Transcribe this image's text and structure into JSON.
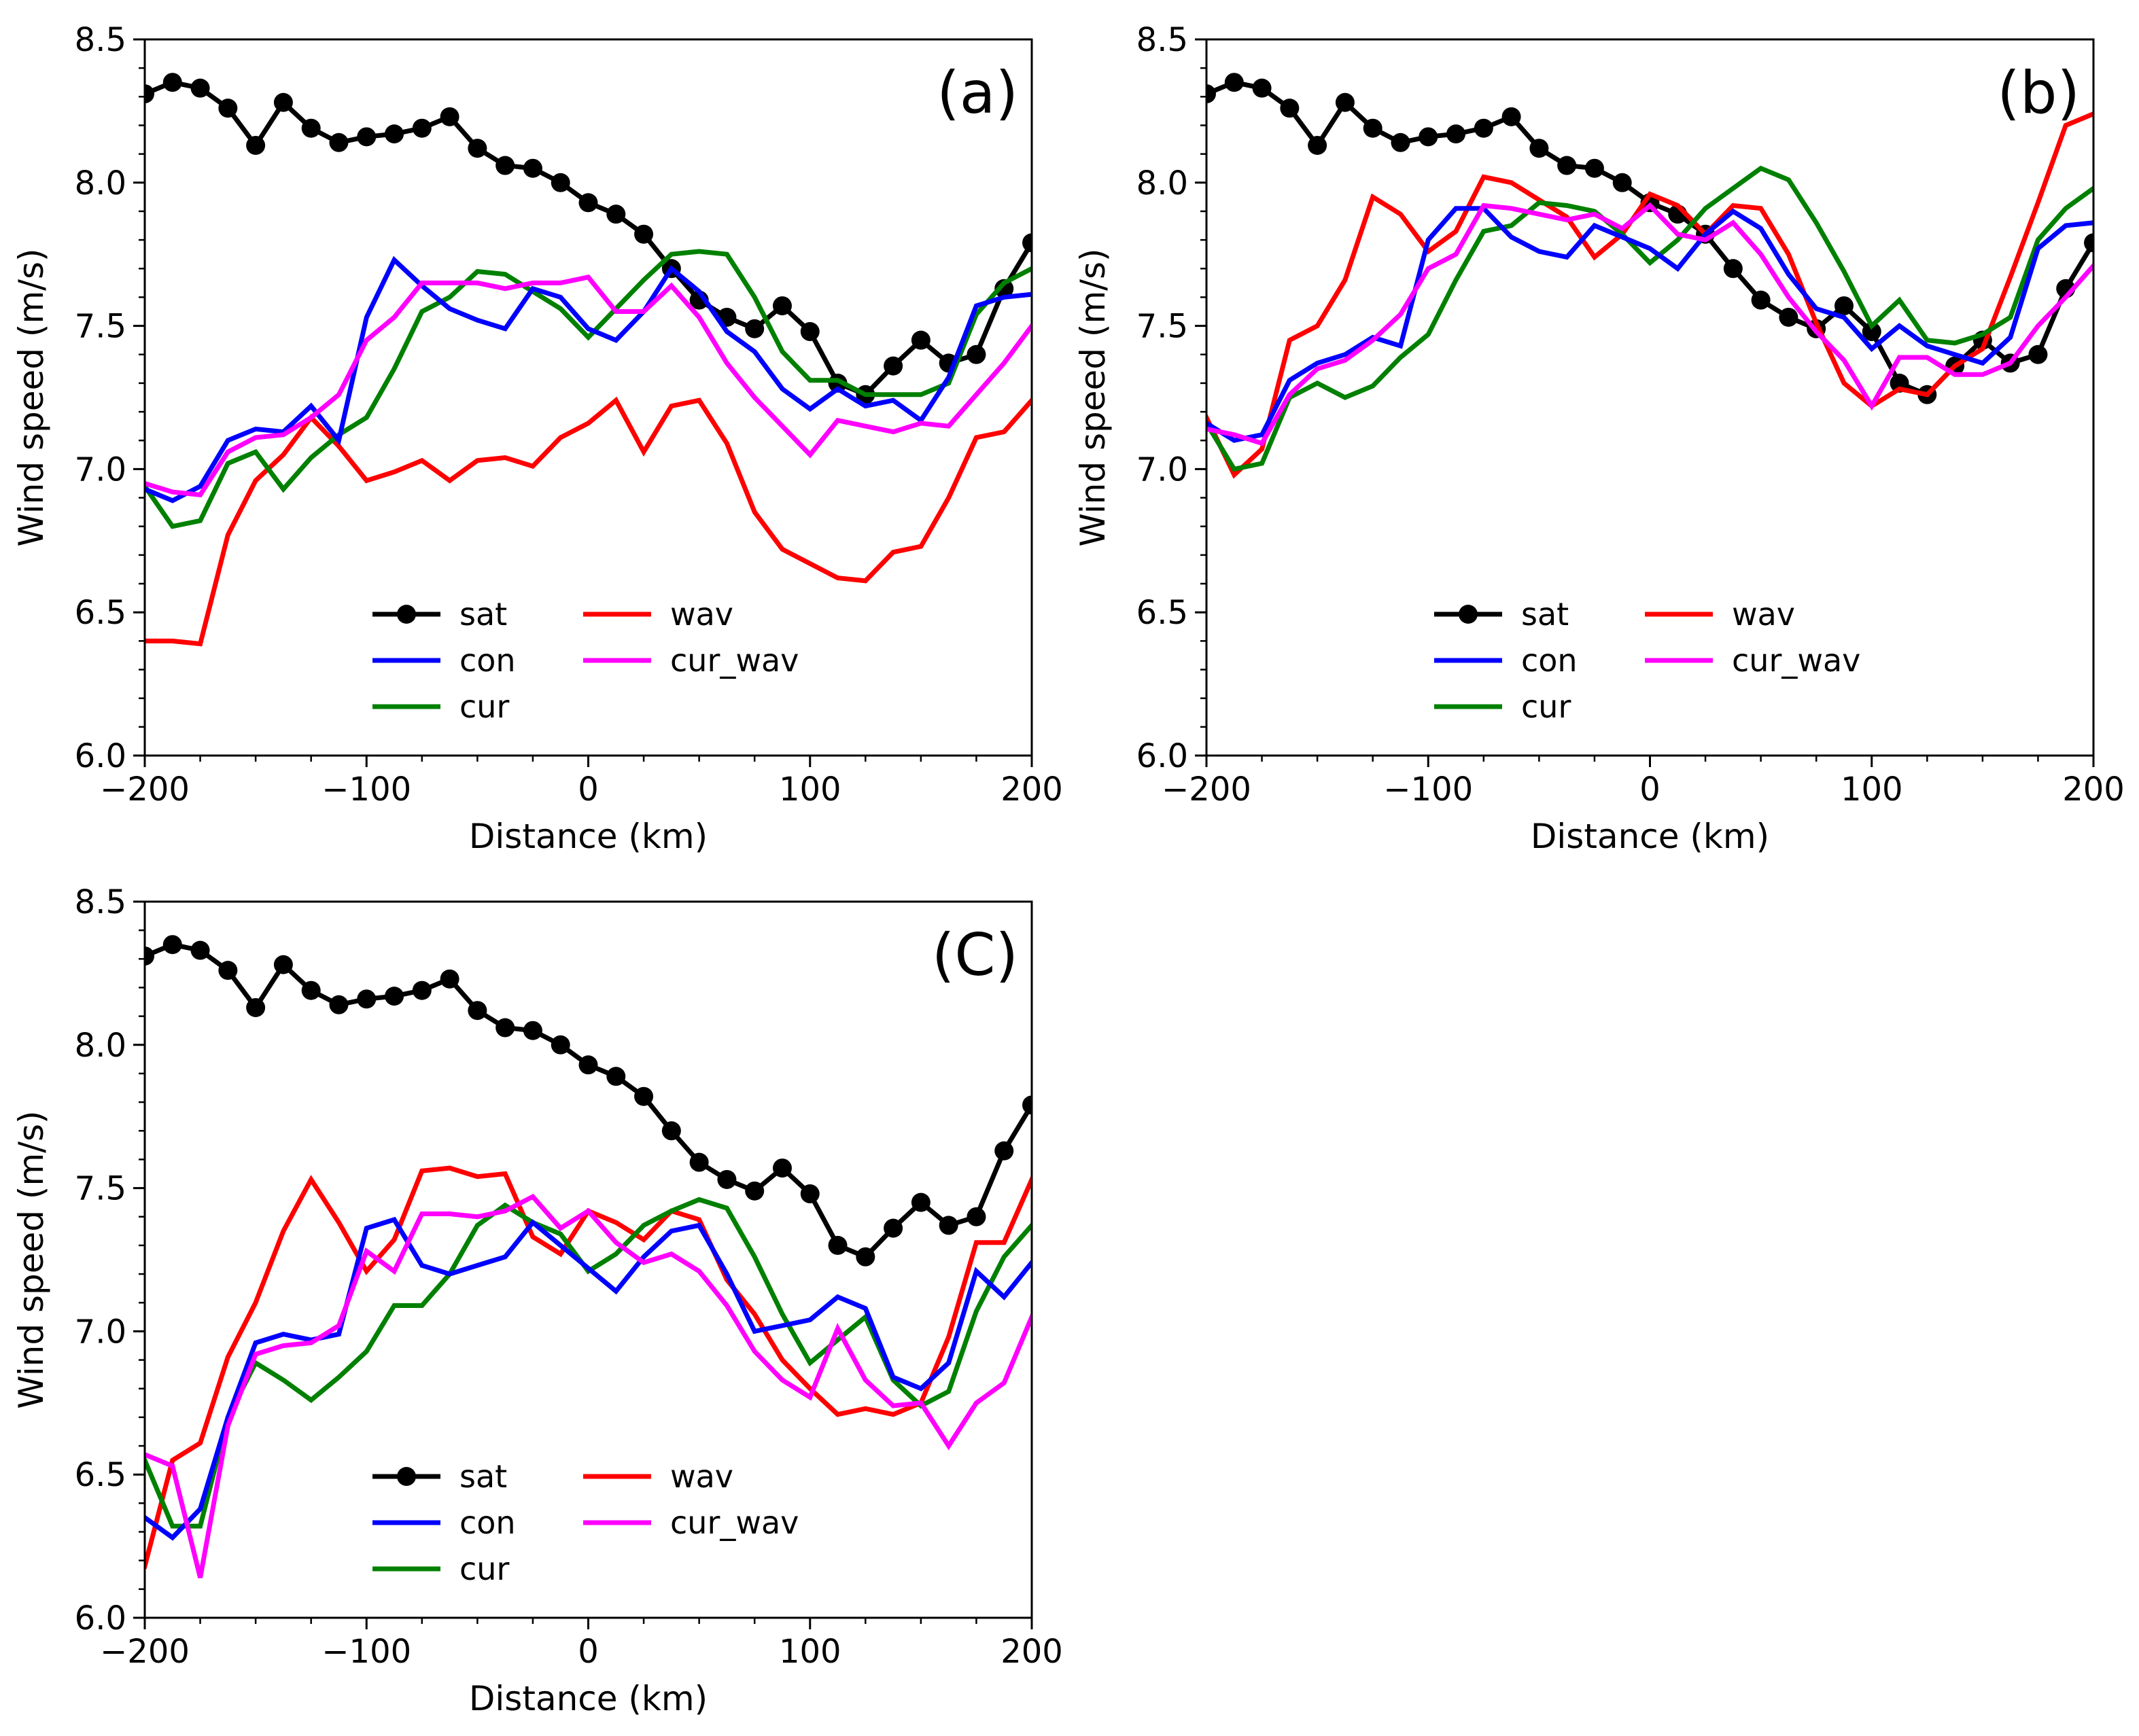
{
  "chart_data": [
    {
      "type": "line",
      "panel_label": "(a)",
      "xlabel": "Distance (km)",
      "ylabel": "Wind speed (m/s)",
      "xlim": [
        -200,
        200
      ],
      "ylim": [
        6.0,
        8.5
      ],
      "xticks": [
        -200,
        -100,
        0,
        100,
        200
      ],
      "yticks": [
        6.0,
        6.5,
        7.0,
        7.5,
        8.0,
        8.5
      ],
      "xtick_labels": [
        "−200",
        "−100",
        "0",
        "100",
        "200"
      ],
      "ytick_labels": [
        "6.0",
        "6.5",
        "7.0",
        "7.5",
        "8.0",
        "8.5"
      ],
      "legend_position": "lower-center",
      "x": [
        -200,
        -187.5,
        -175,
        -162.5,
        -150,
        -137.5,
        -125,
        -112.5,
        -100,
        -87.5,
        -75,
        -62.5,
        -50,
        -37.5,
        -25,
        -12.5,
        0,
        12.5,
        25,
        37.5,
        50,
        62.5,
        75,
        87.5,
        100,
        112.5,
        125,
        137.5,
        150,
        162.5,
        175,
        187.5,
        200
      ],
      "series": [
        {
          "name": "sat",
          "color": "#000000",
          "markers": true,
          "values": [
            8.31,
            8.35,
            8.33,
            8.26,
            8.13,
            8.28,
            8.19,
            8.14,
            8.16,
            8.17,
            8.19,
            8.23,
            8.12,
            8.06,
            8.05,
            8.0,
            7.93,
            7.89,
            7.82,
            7.7,
            7.59,
            7.53,
            7.49,
            7.57,
            7.48,
            7.3,
            7.26,
            7.36,
            7.45,
            7.37,
            7.4,
            7.63,
            7.79
          ]
        },
        {
          "name": "con",
          "color": "#0000ff",
          "values": [
            6.93,
            6.89,
            6.94,
            7.1,
            7.14,
            7.13,
            7.22,
            7.1,
            7.53,
            7.73,
            7.64,
            7.56,
            7.52,
            7.49,
            7.63,
            7.6,
            7.49,
            7.45,
            7.55,
            7.7,
            7.62,
            7.48,
            7.41,
            7.28,
            7.21,
            7.28,
            7.22,
            7.24,
            7.17,
            7.32,
            7.57,
            7.6,
            7.61
          ]
        },
        {
          "name": "cur",
          "color": "#008000",
          "values": [
            6.94,
            6.8,
            6.82,
            7.02,
            7.06,
            6.93,
            7.04,
            7.12,
            7.18,
            7.35,
            7.55,
            7.6,
            7.69,
            7.68,
            7.62,
            7.56,
            7.46,
            7.56,
            7.66,
            7.75,
            7.76,
            7.75,
            7.6,
            7.41,
            7.31,
            7.31,
            7.26,
            7.26,
            7.26,
            7.3,
            7.54,
            7.65,
            7.7
          ]
        },
        {
          "name": "wav",
          "color": "#ff0000",
          "values": [
            6.4,
            6.4,
            6.39,
            6.77,
            6.96,
            7.05,
            7.18,
            7.08,
            6.96,
            6.99,
            7.03,
            6.96,
            7.03,
            7.04,
            7.01,
            7.11,
            7.16,
            7.24,
            7.06,
            7.22,
            7.24,
            7.09,
            6.85,
            6.72,
            6.67,
            6.62,
            6.61,
            6.71,
            6.73,
            6.9,
            7.11,
            7.13,
            7.24
          ]
        },
        {
          "name": "cur_wav",
          "color": "#ff00ff",
          "values": [
            6.95,
            6.92,
            6.91,
            7.06,
            7.11,
            7.12,
            7.18,
            7.26,
            7.45,
            7.53,
            7.65,
            7.65,
            7.65,
            7.63,
            7.65,
            7.65,
            7.67,
            7.55,
            7.55,
            7.64,
            7.53,
            7.37,
            7.25,
            7.15,
            7.05,
            7.17,
            7.15,
            7.13,
            7.16,
            7.15,
            7.26,
            7.37,
            7.5
          ]
        }
      ]
    },
    {
      "type": "line",
      "panel_label": "(b)",
      "xlabel": "Distance (km)",
      "ylabel": "Wind speed (m/s)",
      "xlim": [
        -200,
        200
      ],
      "ylim": [
        6.0,
        8.5
      ],
      "xticks": [
        -200,
        -100,
        0,
        100,
        200
      ],
      "yticks": [
        6.0,
        6.5,
        7.0,
        7.5,
        8.0,
        8.5
      ],
      "xtick_labels": [
        "−200",
        "−100",
        "0",
        "100",
        "200"
      ],
      "ytick_labels": [
        "6.0",
        "6.5",
        "7.0",
        "7.5",
        "8.0",
        "8.5"
      ],
      "legend_position": "lower-center",
      "x": [
        -200,
        -187.5,
        -175,
        -162.5,
        -150,
        -137.5,
        -125,
        -112.5,
        -100,
        -87.5,
        -75,
        -62.5,
        -50,
        -37.5,
        -25,
        -12.5,
        0,
        12.5,
        25,
        37.5,
        50,
        62.5,
        75,
        87.5,
        100,
        112.5,
        125,
        137.5,
        150,
        162.5,
        175,
        187.5,
        200
      ],
      "series": [
        {
          "name": "sat",
          "color": "#000000",
          "markers": true,
          "values": [
            8.31,
            8.35,
            8.33,
            8.26,
            8.13,
            8.28,
            8.19,
            8.14,
            8.16,
            8.17,
            8.19,
            8.23,
            8.12,
            8.06,
            8.05,
            8.0,
            7.93,
            7.89,
            7.82,
            7.7,
            7.59,
            7.53,
            7.49,
            7.57,
            7.48,
            7.3,
            7.26,
            7.36,
            7.45,
            7.37,
            7.4,
            7.63,
            7.79
          ]
        },
        {
          "name": "con",
          "color": "#0000ff",
          "values": [
            7.16,
            7.1,
            7.12,
            7.31,
            7.37,
            7.4,
            7.46,
            7.43,
            7.8,
            7.91,
            7.91,
            7.81,
            7.76,
            7.74,
            7.85,
            7.81,
            7.77,
            7.7,
            7.82,
            7.9,
            7.84,
            7.68,
            7.56,
            7.53,
            7.42,
            7.5,
            7.43,
            7.4,
            7.37,
            7.46,
            7.77,
            7.85,
            7.86
          ]
        },
        {
          "name": "cur",
          "color": "#008000",
          "values": [
            7.16,
            7.0,
            7.02,
            7.25,
            7.3,
            7.25,
            7.29,
            7.39,
            7.47,
            7.66,
            7.83,
            7.85,
            7.93,
            7.92,
            7.9,
            7.82,
            7.72,
            7.8,
            7.91,
            7.98,
            8.05,
            8.01,
            7.86,
            7.69,
            7.5,
            7.59,
            7.45,
            7.44,
            7.47,
            7.53,
            7.8,
            7.91,
            7.98
          ]
        },
        {
          "name": "wav",
          "color": "#ff0000",
          "values": [
            7.18,
            6.98,
            7.07,
            7.45,
            7.5,
            7.66,
            7.95,
            7.89,
            7.76,
            7.83,
            8.02,
            8.0,
            7.94,
            7.88,
            7.74,
            7.82,
            7.96,
            7.92,
            7.82,
            7.92,
            7.91,
            7.75,
            7.51,
            7.3,
            7.22,
            7.28,
            7.26,
            7.36,
            7.42,
            7.67,
            7.93,
            8.2,
            8.24
          ]
        },
        {
          "name": "cur_wav",
          "color": "#ff00ff",
          "values": [
            7.14,
            7.12,
            7.09,
            7.26,
            7.35,
            7.38,
            7.45,
            7.54,
            7.7,
            7.75,
            7.92,
            7.91,
            7.89,
            7.87,
            7.89,
            7.84,
            7.92,
            7.82,
            7.8,
            7.86,
            7.75,
            7.6,
            7.48,
            7.38,
            7.22,
            7.39,
            7.39,
            7.33,
            7.33,
            7.37,
            7.5,
            7.6,
            7.71
          ]
        }
      ]
    },
    {
      "type": "line",
      "panel_label": "(C)",
      "xlabel": "Distance (km)",
      "ylabel": "Wind speed (m/s)",
      "xlim": [
        -200,
        200
      ],
      "ylim": [
        6.0,
        8.5
      ],
      "xticks": [
        -200,
        -100,
        0,
        100,
        200
      ],
      "yticks": [
        6.0,
        6.5,
        7.0,
        7.5,
        8.0,
        8.5
      ],
      "xtick_labels": [
        "−200",
        "−100",
        "0",
        "100",
        "200"
      ],
      "ytick_labels": [
        "6.0",
        "6.5",
        "7.0",
        "7.5",
        "8.0",
        "8.5"
      ],
      "legend_position": "lower-center",
      "x": [
        -200,
        -187.5,
        -175,
        -162.5,
        -150,
        -137.5,
        -125,
        -112.5,
        -100,
        -87.5,
        -75,
        -62.5,
        -50,
        -37.5,
        -25,
        -12.5,
        0,
        12.5,
        25,
        37.5,
        50,
        62.5,
        75,
        87.5,
        100,
        112.5,
        125,
        137.5,
        150,
        162.5,
        175,
        187.5,
        200
      ],
      "series": [
        {
          "name": "sat",
          "color": "#000000",
          "markers": true,
          "values": [
            8.31,
            8.35,
            8.33,
            8.26,
            8.13,
            8.28,
            8.19,
            8.14,
            8.16,
            8.17,
            8.19,
            8.23,
            8.12,
            8.06,
            8.05,
            8.0,
            7.93,
            7.89,
            7.82,
            7.7,
            7.59,
            7.53,
            7.49,
            7.57,
            7.48,
            7.3,
            7.26,
            7.36,
            7.45,
            7.37,
            7.4,
            7.63,
            7.79
          ]
        },
        {
          "name": "con",
          "color": "#0000ff",
          "values": [
            6.35,
            6.28,
            6.38,
            6.7,
            6.96,
            6.99,
            6.97,
            6.99,
            7.36,
            7.39,
            7.23,
            7.2,
            7.23,
            7.26,
            7.38,
            7.3,
            7.22,
            7.14,
            7.26,
            7.35,
            7.37,
            7.2,
            7.0,
            7.02,
            7.04,
            7.12,
            7.08,
            6.84,
            6.8,
            6.89,
            7.21,
            7.12,
            7.24
          ]
        },
        {
          "name": "cur",
          "color": "#008000",
          "values": [
            6.55,
            6.32,
            6.32,
            6.7,
            6.89,
            6.83,
            6.76,
            6.84,
            6.93,
            7.09,
            7.09,
            7.2,
            7.37,
            7.44,
            7.38,
            7.34,
            7.21,
            7.27,
            7.37,
            7.42,
            7.46,
            7.43,
            7.26,
            7.06,
            6.89,
            6.97,
            7.05,
            6.83,
            6.74,
            6.79,
            7.07,
            7.26,
            7.37
          ]
        },
        {
          "name": "wav",
          "color": "#ff0000",
          "values": [
            6.18,
            6.55,
            6.61,
            6.91,
            7.1,
            7.35,
            7.53,
            7.38,
            7.21,
            7.32,
            7.56,
            7.57,
            7.54,
            7.55,
            7.33,
            7.27,
            7.42,
            7.38,
            7.32,
            7.42,
            7.39,
            7.18,
            7.06,
            6.9,
            6.8,
            6.71,
            6.73,
            6.71,
            6.75,
            6.98,
            7.31,
            7.31,
            7.53
          ]
        },
        {
          "name": "cur_wav",
          "color": "#ff00ff",
          "values": [
            6.57,
            6.53,
            6.14,
            6.67,
            6.92,
            6.95,
            6.96,
            7.02,
            7.28,
            7.21,
            7.41,
            7.41,
            7.4,
            7.42,
            7.47,
            7.36,
            7.42,
            7.31,
            7.24,
            7.27,
            7.21,
            7.09,
            6.93,
            6.83,
            6.77,
            7.01,
            6.83,
            6.74,
            6.75,
            6.6,
            6.75,
            6.82,
            7.05
          ]
        }
      ]
    }
  ]
}
